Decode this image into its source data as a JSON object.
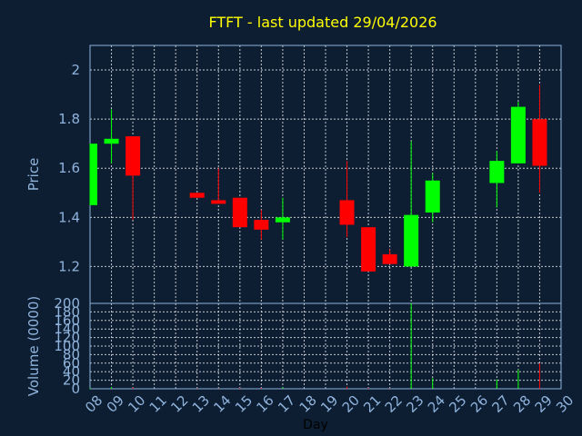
{
  "chart_data": {
    "type": "candlestick",
    "title": "FTFT - last updated 29/04/2026",
    "price_panel": {
      "ylabel": "Price",
      "ylim": [
        1.05,
        2.1
      ],
      "y_ticks": [
        "1.2",
        "1.4",
        "1.6",
        "1.8",
        "2"
      ]
    },
    "volume_panel": {
      "ylabel": "Volume (0000)",
      "ylim": [
        0,
        200
      ],
      "y_ticks": [
        "0",
        "20",
        "40",
        "60",
        "80",
        "100",
        "120",
        "140",
        "160",
        "180",
        "200"
      ]
    },
    "xlabel": "Day",
    "x_ticks": [
      "08",
      "09",
      "10",
      "11",
      "12",
      "13",
      "14",
      "15",
      "16",
      "17",
      "18",
      "19",
      "20",
      "21",
      "22",
      "23",
      "24",
      "25",
      "26",
      "27",
      "28",
      "29",
      "30"
    ],
    "up_color": "#00ff00",
    "down_color": "#ff0000",
    "candles": [
      {
        "day": "08",
        "open": 1.45,
        "high": 1.7,
        "low": 1.45,
        "close": 1.7,
        "volume": 2
      },
      {
        "day": "09",
        "open": 1.7,
        "high": 1.84,
        "low": 1.62,
        "close": 1.72,
        "volume": 4
      },
      {
        "day": "10",
        "open": 1.73,
        "high": 1.73,
        "low": 1.39,
        "close": 1.57,
        "volume": 3
      },
      {
        "day": "13",
        "open": 1.5,
        "high": 1.5,
        "low": 1.48,
        "close": 1.48,
        "volume": 1
      },
      {
        "day": "14",
        "open": 1.47,
        "high": 1.6,
        "low": 1.46,
        "close": 1.46,
        "volume": 1
      },
      {
        "day": "15",
        "open": 1.48,
        "high": 1.48,
        "low": 1.36,
        "close": 1.36,
        "volume": 2
      },
      {
        "day": "16",
        "open": 1.39,
        "high": 1.43,
        "low": 1.31,
        "close": 1.35,
        "volume": 2
      },
      {
        "day": "17",
        "open": 1.38,
        "high": 1.48,
        "low": 1.31,
        "close": 1.4,
        "volume": 3
      },
      {
        "day": "20",
        "open": 1.47,
        "high": 1.63,
        "low": 1.32,
        "close": 1.37,
        "volume": 5
      },
      {
        "day": "21",
        "open": 1.36,
        "high": 1.36,
        "low": 1.18,
        "close": 1.18,
        "volume": 2
      },
      {
        "day": "22",
        "open": 1.25,
        "high": 1.27,
        "low": 1.21,
        "close": 1.21,
        "volume": 1
      },
      {
        "day": "23",
        "open": 1.2,
        "high": 1.71,
        "low": 1.2,
        "close": 1.41,
        "volume": 200
      },
      {
        "day": "24",
        "open": 1.42,
        "high": 1.58,
        "low": 1.38,
        "close": 1.55,
        "volume": 25
      },
      {
        "day": "27",
        "open": 1.54,
        "high": 1.67,
        "low": 1.44,
        "close": 1.63,
        "volume": 22
      },
      {
        "day": "28",
        "open": 1.62,
        "high": 1.87,
        "low": 1.62,
        "close": 1.85,
        "volume": 45
      },
      {
        "day": "29",
        "open": 1.8,
        "high": 1.94,
        "low": 1.5,
        "close": 1.61,
        "volume": 60
      }
    ]
  }
}
